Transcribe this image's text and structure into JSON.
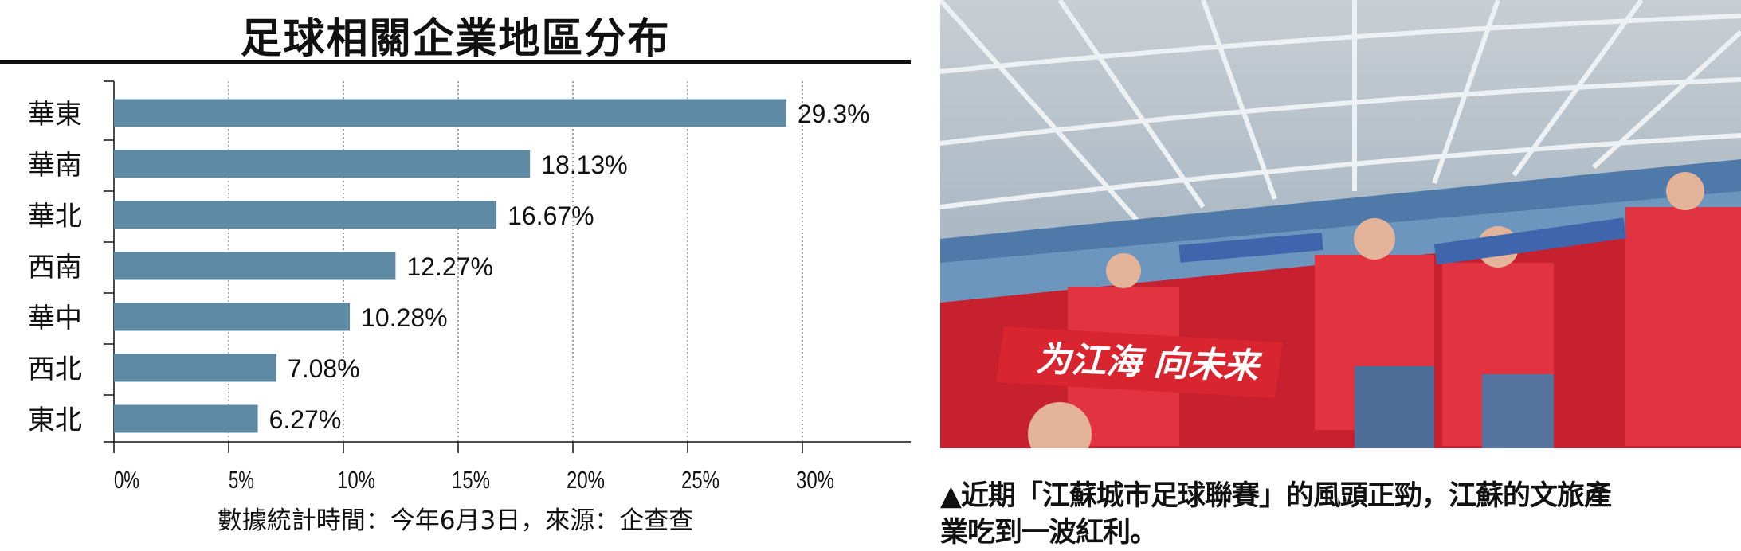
{
  "title": "足球相關企業地區分布",
  "chart_data": {
    "type": "bar",
    "orientation": "horizontal",
    "title": "足球相關企業地區分布",
    "categories": [
      "華東",
      "華南",
      "華北",
      "西南",
      "華中",
      "西北",
      "東北"
    ],
    "values": [
      29.3,
      18.13,
      16.67,
      12.27,
      10.28,
      7.08,
      6.27
    ],
    "value_labels": [
      "29.3%",
      "18.13%",
      "16.67%",
      "12.27%",
      "10.28%",
      "7.08%",
      "6.27%"
    ],
    "xlim": [
      0,
      30
    ],
    "xticks": [
      "0%",
      "5%",
      "10%",
      "15%",
      "20%",
      "25%",
      "30%"
    ],
    "grid": "vertical dotted",
    "bar_color": "#5e8ba3"
  },
  "footnote": "數據統計時間：今年6月3日，來源：企查查",
  "photo": {
    "banner_text": "为江海 向未来"
  },
  "caption": {
    "line1": "▲近期「江蘇城市足球聯賽」的風頭正勁，江蘇的文旅產",
    "line2": "業吃到一波紅利。"
  }
}
